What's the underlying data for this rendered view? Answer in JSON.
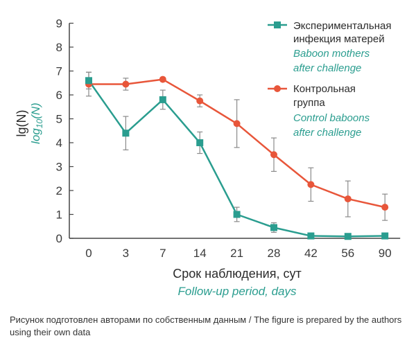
{
  "chart_data": {
    "type": "line",
    "categories": [
      "0",
      "3",
      "7",
      "14",
      "21",
      "28",
      "42",
      "56",
      "90"
    ],
    "ylim": [
      0,
      9
    ],
    "yticks": [
      "0",
      "1",
      "2",
      "3",
      "4",
      "5",
      "6",
      "7",
      "8",
      "9"
    ],
    "ylabel": {
      "ru": "lg(N)",
      "en_base": "log",
      "en_sub": "10",
      "en_tail": "(N)"
    },
    "xlabel": {
      "ru": "Срок наблюдения, сут",
      "en": "Follow-up period, days"
    },
    "grid": false,
    "legend_position": "top-right",
    "series": [
      {
        "name_ru": [
          "Экспериментальная",
          "инфекция матерей"
        ],
        "name_en": [
          "Baboon mothers",
          "after challenge"
        ],
        "color": "#2a9d8f",
        "marker": "square",
        "values": [
          6.6,
          4.4,
          5.8,
          4.0,
          1.0,
          0.45,
          0.1,
          0.08,
          0.1
        ],
        "err": [
          0.35,
          0.7,
          0.4,
          0.45,
          0.3,
          0.2,
          0,
          0,
          0
        ]
      },
      {
        "name_ru": [
          "Контрольная",
          "группа"
        ],
        "name_en": [
          "Control baboons",
          "after challenge"
        ],
        "color": "#e8563a",
        "marker": "circle",
        "values": [
          6.45,
          6.45,
          6.65,
          5.75,
          4.8,
          3.5,
          2.25,
          1.65,
          1.3
        ],
        "err": [
          0.5,
          0.25,
          0,
          0.25,
          1.0,
          0.7,
          0.7,
          0.75,
          0.55
        ]
      }
    ]
  },
  "caption": "Рисунок подготовлен авторами по собственным данным / The figure is prepared by the authors using their own data"
}
